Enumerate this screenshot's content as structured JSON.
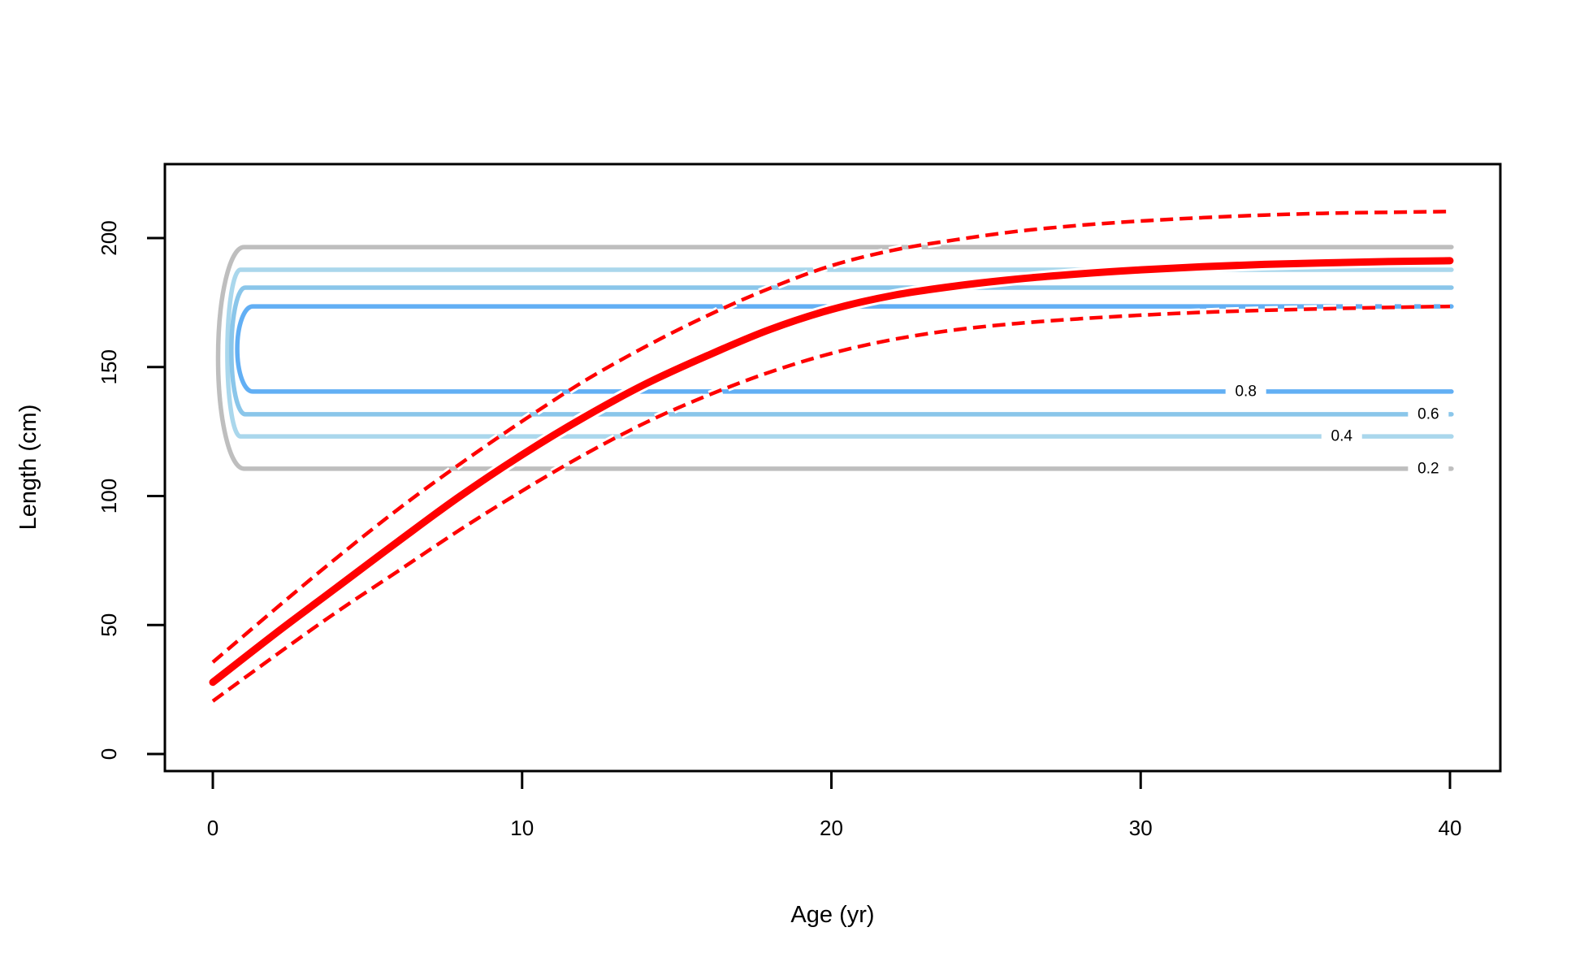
{
  "figure": {
    "background": "#FFFFFF",
    "plot_border_color": "#000000"
  },
  "chart_data": {
    "type": "line",
    "title": "",
    "xlabel": "Age (yr)",
    "ylabel": "Length (cm)",
    "x_ticks": [
      0,
      10,
      20,
      30,
      40
    ],
    "y_ticks": [
      0,
      50,
      100,
      150,
      200
    ],
    "xlim": [
      -1.55,
      41.6
    ],
    "ylim": [
      -6.6,
      228.7
    ],
    "grid": false,
    "legend": "none",
    "x": [
      0,
      2,
      4,
      6,
      8,
      10,
      12,
      14,
      16,
      18,
      20,
      22,
      24,
      26,
      28,
      30,
      32,
      34,
      36,
      38,
      40
    ],
    "series": [
      {
        "name": "lower-dashed-band",
        "style": "dashed",
        "color": "#FF0000",
        "values": [
          20.5,
          38,
          55,
          71,
          87,
          102,
          116,
          128.5,
          139,
          148,
          155.3,
          160.7,
          164.4,
          166.9,
          168.7,
          170.1,
          171.2,
          172.0,
          172.6,
          173.1,
          173.5
        ]
      },
      {
        "name": "upper-dashed-band",
        "style": "dashed",
        "color": "#FF0000",
        "values": [
          35.6,
          56,
          76,
          95,
          112.5,
          129,
          144.5,
          158,
          170,
          180.5,
          189.3,
          195.3,
          199.3,
          202.6,
          204.9,
          206.6,
          207.9,
          208.9,
          209.6,
          210.0,
          210.3
        ]
      },
      {
        "name": "mean-length-curve",
        "style": "solid",
        "color": "#FF0000",
        "values": [
          27.8,
          46.5,
          64.5,
          82.5,
          100,
          116,
          130.5,
          143.5,
          154.5,
          164.5,
          172.3,
          177.8,
          181.4,
          184.1,
          186.1,
          187.7,
          188.9,
          189.8,
          190.4,
          190.9,
          191.2
        ]
      }
    ],
    "contours": [
      {
        "level": 0.2,
        "label": "0.2",
        "color": "#BEBEBE",
        "len_top": 196.5,
        "len_bottom": 110.6,
        "start_age": 0.17,
        "end_age": 40.05,
        "label_age": 39.3,
        "label_on": "bottom"
      },
      {
        "level": 0.4,
        "label": "0.4",
        "color": "#AAD7EC",
        "len_top": 187.7,
        "len_bottom": 123.1,
        "start_age": 0.47,
        "end_age": 40.05,
        "label_age": 36.5,
        "label_on": "bottom"
      },
      {
        "level": 0.6,
        "label": "0.6",
        "color": "#8AC6EA",
        "len_top": 180.8,
        "len_bottom": 131.7,
        "start_age": 0.6,
        "end_age": 40.05,
        "label_age": 39.3,
        "label_on": "bottom"
      },
      {
        "level": 0.8,
        "label": "0.8",
        "color": "#62AFF4",
        "len_top": 173.5,
        "len_bottom": 140.5,
        "start_age": 0.79,
        "end_age": 40.05,
        "label_age": 33.4,
        "label_on": "bottom"
      }
    ]
  }
}
